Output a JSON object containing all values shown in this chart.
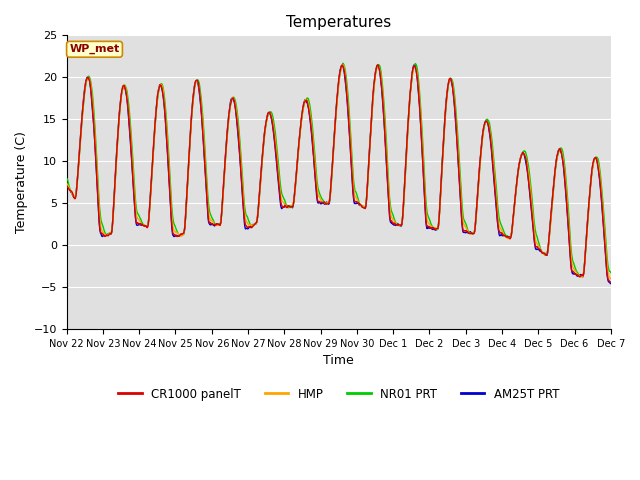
{
  "title": "Temperatures",
  "xlabel": "Time",
  "ylabel": "Temperature (C)",
  "ylim": [
    -10,
    25
  ],
  "yticks": [
    -10,
    -5,
    0,
    5,
    10,
    15,
    20,
    25
  ],
  "legend_labels": [
    "CR1000 panelT",
    "HMP",
    "NR01 PRT",
    "AM25T PRT"
  ],
  "legend_colors": [
    "#dd0000",
    "#ffa500",
    "#00cc00",
    "#0000cc"
  ],
  "background_color": "#ffffff",
  "plot_bg_color": "#e0e0e0",
  "grid_color": "#ffffff",
  "wp_met_label": "WP_met",
  "wp_met_bg": "#ffffcc",
  "wp_met_border": "#cc8800",
  "wp_met_text_color": "#880000",
  "title_fontsize": 11,
  "axis_fontsize": 9,
  "tick_fontsize": 8
}
